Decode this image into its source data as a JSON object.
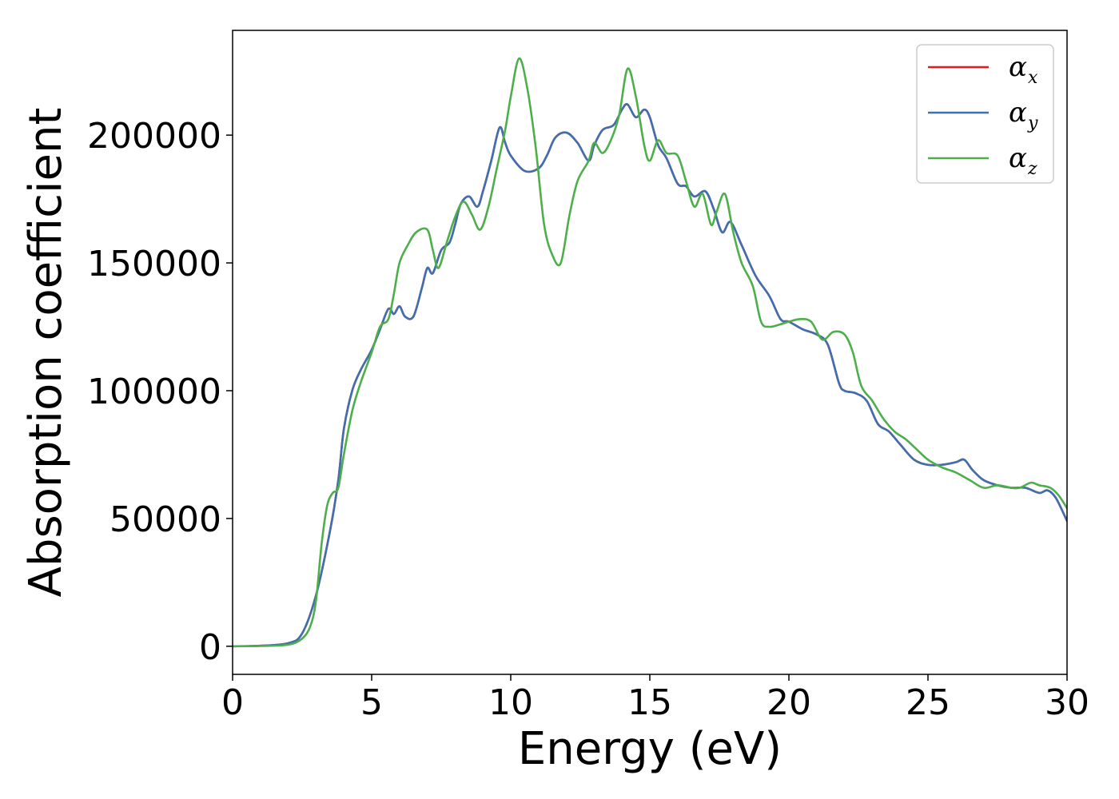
{
  "chart_data": {
    "type": "line",
    "xlabel": "Energy (eV)",
    "ylabel": "Absorption coefficient",
    "xlim": [
      0,
      30
    ],
    "ylim": [
      -11000,
      241000
    ],
    "xticks": [
      0,
      5,
      10,
      15,
      20,
      25,
      30
    ],
    "yticks": [
      0,
      50000,
      100000,
      150000,
      200000
    ],
    "grid": false,
    "legend_position": "top-right",
    "series": [
      {
        "name": "α_x",
        "symbol": "α",
        "subscript": "x",
        "color": "#e41a1c",
        "x": [
          0,
          1,
          2,
          2.5,
          3,
          3.5,
          3.8,
          4,
          4.3,
          4.6,
          5,
          5.3,
          5.6,
          5.8,
          6,
          6.2,
          6.5,
          6.8,
          7,
          7.2,
          7.5,
          7.8,
          8,
          8.2,
          8.5,
          8.8,
          9,
          9.3,
          9.6,
          9.8,
          10,
          10.5,
          11,
          11.3,
          11.6,
          12,
          12.4,
          12.8,
          13,
          13.3,
          13.7,
          14,
          14.2,
          14.5,
          14.8,
          15,
          15.3,
          15.6,
          16,
          16.3,
          16.6,
          17,
          17.3,
          17.6,
          17.9,
          18.3,
          18.8,
          19.3,
          19.7,
          20,
          20.5,
          21,
          21.4,
          21.8,
          22,
          22.4,
          22.8,
          23.2,
          23.6,
          24,
          24.5,
          25,
          25.5,
          26,
          26.3,
          26.6,
          27,
          27.5,
          28,
          28.5,
          29,
          29.3,
          29.6,
          30
        ],
        "y": [
          0,
          200,
          1200,
          5000,
          20000,
          45000,
          65000,
          85000,
          100000,
          108000,
          116000,
          124000,
          132000,
          130000,
          133000,
          129000,
          129000,
          140000,
          148000,
          146000,
          155000,
          158000,
          165000,
          173000,
          176000,
          172000,
          178000,
          190000,
          203000,
          197000,
          192000,
          186000,
          187000,
          192000,
          199000,
          201000,
          197000,
          190000,
          196000,
          202000,
          204000,
          210000,
          212000,
          207000,
          210000,
          207000,
          196000,
          191000,
          181000,
          180000,
          176000,
          178000,
          171000,
          162000,
          166000,
          157000,
          145000,
          137000,
          128000,
          127000,
          124000,
          122000,
          118000,
          103000,
          100000,
          99000,
          96000,
          87000,
          84000,
          79000,
          73000,
          71000,
          71000,
          72000,
          73000,
          69000,
          65000,
          63000,
          62000,
          62000,
          60000,
          61000,
          58000,
          49000
        ]
      },
      {
        "name": "α_y",
        "symbol": "α",
        "subscript": "y",
        "color": "#3e6fb0",
        "x": [
          0,
          1,
          2,
          2.5,
          3,
          3.5,
          3.8,
          4,
          4.3,
          4.6,
          5,
          5.3,
          5.6,
          5.8,
          6,
          6.2,
          6.5,
          6.8,
          7,
          7.2,
          7.5,
          7.8,
          8,
          8.2,
          8.5,
          8.8,
          9,
          9.3,
          9.6,
          9.8,
          10,
          10.5,
          11,
          11.3,
          11.6,
          12,
          12.4,
          12.8,
          13,
          13.3,
          13.7,
          14,
          14.2,
          14.5,
          14.8,
          15,
          15.3,
          15.6,
          16,
          16.3,
          16.6,
          17,
          17.3,
          17.6,
          17.9,
          18.3,
          18.8,
          19.3,
          19.7,
          20,
          20.5,
          21,
          21.4,
          21.8,
          22,
          22.4,
          22.8,
          23.2,
          23.6,
          24,
          24.5,
          25,
          25.5,
          26,
          26.3,
          26.6,
          27,
          27.5,
          28,
          28.5,
          29,
          29.3,
          29.6,
          30
        ],
        "y": [
          0,
          200,
          1200,
          5000,
          20000,
          45000,
          65000,
          85000,
          100000,
          108000,
          116000,
          124000,
          132000,
          130000,
          133000,
          129000,
          129000,
          140000,
          148000,
          146000,
          155000,
          158000,
          165000,
          173000,
          176000,
          172000,
          178000,
          190000,
          203000,
          197000,
          192000,
          186000,
          187000,
          192000,
          199000,
          201000,
          197000,
          190000,
          196000,
          202000,
          204000,
          210000,
          212000,
          207000,
          210000,
          207000,
          196000,
          191000,
          181000,
          180000,
          176000,
          178000,
          171000,
          162000,
          166000,
          157000,
          145000,
          137000,
          128000,
          127000,
          124000,
          122000,
          118000,
          103000,
          100000,
          99000,
          96000,
          87000,
          84000,
          79000,
          73000,
          71000,
          71000,
          72000,
          73000,
          69000,
          65000,
          63000,
          62000,
          62000,
          60000,
          61000,
          58000,
          49000
        ]
      },
      {
        "name": "α_z",
        "symbol": "α",
        "subscript": "z",
        "color": "#4daf4a",
        "x": [
          0,
          1,
          2,
          2.5,
          2.8,
          3,
          3.2,
          3.4,
          3.6,
          3.8,
          4,
          4.3,
          4.6,
          5,
          5.3,
          5.6,
          5.8,
          6,
          6.3,
          6.6,
          7,
          7.2,
          7.4,
          7.7,
          8,
          8.3,
          8.6,
          8.9,
          9.2,
          9.5,
          9.8,
          10,
          10.3,
          10.6,
          10.9,
          11.2,
          11.5,
          11.8,
          12.1,
          12.4,
          12.8,
          13,
          13.3,
          13.6,
          13.9,
          14.2,
          14.5,
          14.8,
          15,
          15.3,
          15.6,
          16,
          16.3,
          16.6,
          16.9,
          17.2,
          17.4,
          17.7,
          18,
          18.3,
          18.7,
          19,
          19.3,
          19.7,
          20,
          20.4,
          20.8,
          21.2,
          21.6,
          22,
          22.3,
          22.6,
          23,
          23.4,
          23.8,
          24.2,
          24.6,
          25,
          25.5,
          26,
          26.5,
          27,
          27.5,
          28,
          28.3,
          28.7,
          29,
          29.4,
          29.7,
          30
        ],
        "y": [
          0,
          100,
          600,
          3000,
          8000,
          18000,
          40000,
          55000,
          60000,
          62000,
          75000,
          92000,
          103000,
          115000,
          125000,
          128000,
          138000,
          150000,
          157000,
          162000,
          163000,
          155000,
          148000,
          158000,
          168000,
          174000,
          169000,
          163000,
          172000,
          187000,
          202000,
          215000,
          230000,
          218000,
          195000,
          165000,
          153000,
          150000,
          168000,
          182000,
          190000,
          197000,
          193000,
          198000,
          208000,
          226000,
          215000,
          196000,
          190000,
          198000,
          193000,
          192000,
          182000,
          172000,
          177000,
          165000,
          170000,
          177000,
          162000,
          150000,
          141000,
          127000,
          125000,
          126000,
          127000,
          128000,
          127000,
          120000,
          123000,
          122000,
          115000,
          102000,
          96000,
          89000,
          84000,
          81000,
          77000,
          73000,
          70000,
          68000,
          65000,
          62000,
          63000,
          62000,
          62000,
          64000,
          63000,
          62000,
          59000,
          54000
        ]
      }
    ]
  }
}
